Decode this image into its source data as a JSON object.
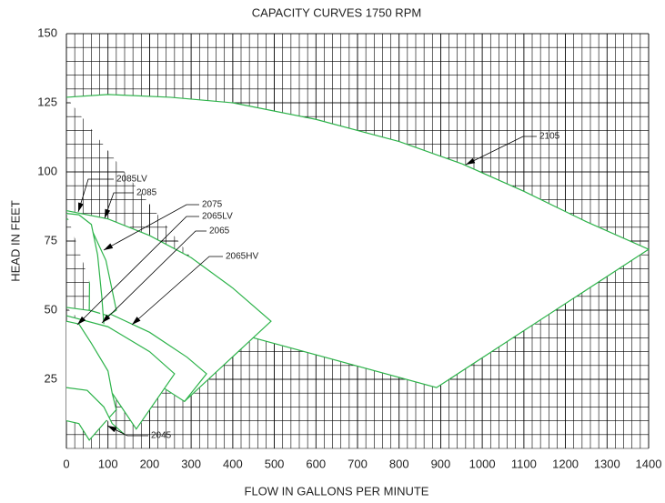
{
  "chart_data": {
    "type": "line",
    "title": "CAPACITY CURVES 1750 RPM",
    "x_label": "FLOW IN GALLONS PER MINUTE",
    "y_label": "HEAD IN FEET",
    "xlim": [
      0,
      1400
    ],
    "ylim": [
      0,
      150
    ],
    "xticks": [
      0,
      100,
      200,
      300,
      400,
      500,
      600,
      700,
      800,
      900,
      1000,
      1100,
      1200,
      1300,
      1400
    ],
    "yticks": [
      25,
      50,
      75,
      100,
      125,
      150
    ],
    "grid": true,
    "minor_grid": {
      "x": 20,
      "y": 5
    },
    "series": [
      {
        "name": "2105",
        "color": "#2db34a",
        "x": [
          0,
          100,
          250,
          400,
          600,
          800,
          950,
          1100,
          1250,
          1400,
          890,
          450
        ],
        "y": [
          127,
          128,
          127,
          125,
          119,
          111,
          103,
          93,
          82,
          72,
          22,
          40
        ]
      },
      {
        "name": "2085",
        "color": "#2db34a",
        "x": [
          0,
          100,
          200,
          300,
          400,
          492,
          284,
          120
        ],
        "y": [
          86,
          83,
          77,
          69,
          58,
          46,
          17,
          45
        ]
      },
      {
        "name": "2065HV",
        "color": "#2db34a",
        "x": [
          0,
          100,
          200,
          290,
          337,
          284,
          150
        ],
        "y": [
          51,
          49,
          42,
          33,
          27,
          17,
          30
        ]
      },
      {
        "name": "2065",
        "color": "#2db34a",
        "x": [
          0,
          100,
          200,
          260,
          168,
          110
        ],
        "y": [
          48,
          44,
          35,
          27,
          7,
          20
        ]
      },
      {
        "name": "2075",
        "color": "#2db34a",
        "x": [
          0,
          55,
          95,
          120,
          100,
          55,
          57
        ],
        "y": [
          83,
          81,
          68,
          50,
          48,
          50,
          80
        ]
      },
      {
        "name": "2085LV",
        "color": "#2db34a",
        "x": [
          0,
          30,
          60,
          75,
          85,
          90
        ],
        "y": [
          85,
          84.5,
          81,
          70,
          55,
          45
        ]
      },
      {
        "name": "2065LV",
        "color": "#2db34a",
        "x": [
          0,
          30,
          60,
          100,
          110,
          120,
          90,
          55,
          30,
          0
        ],
        "y": [
          46,
          45,
          38,
          28,
          20,
          14,
          9,
          3,
          9,
          10
        ]
      },
      {
        "name": "2045",
        "color": "#2db34a",
        "x": [
          0,
          50,
          90,
          110,
          140
        ],
        "y": [
          22,
          21,
          15,
          9,
          5
        ]
      }
    ]
  }
}
